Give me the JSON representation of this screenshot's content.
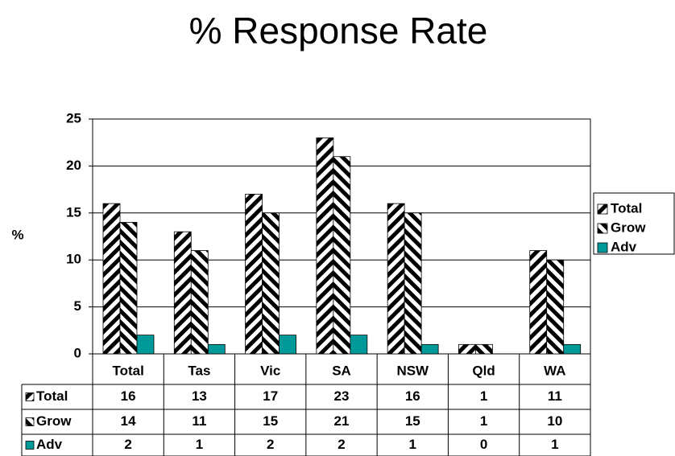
{
  "chart_data": {
    "type": "bar",
    "title": "% Response Rate",
    "y_label": "%",
    "categories": [
      "Total",
      "Tas",
      "Vic",
      "SA",
      "NSW",
      "Qld",
      "WA"
    ],
    "series": [
      {
        "name": "Total",
        "color": "#000000",
        "values": [
          16,
          13,
          17,
          23,
          16,
          1,
          11
        ]
      },
      {
        "name": "Grow",
        "color": "#000000",
        "values": [
          14,
          11,
          15,
          21,
          15,
          1,
          10
        ]
      },
      {
        "name": "Adv",
        "color": "#009999",
        "values": [
          2,
          1,
          2,
          2,
          1,
          0,
          1
        ]
      }
    ],
    "ylim": [
      0,
      25
    ],
    "yticks": [
      0,
      5,
      10,
      15,
      20,
      25
    ],
    "grid": true,
    "legend": "right",
    "data_table": true
  }
}
